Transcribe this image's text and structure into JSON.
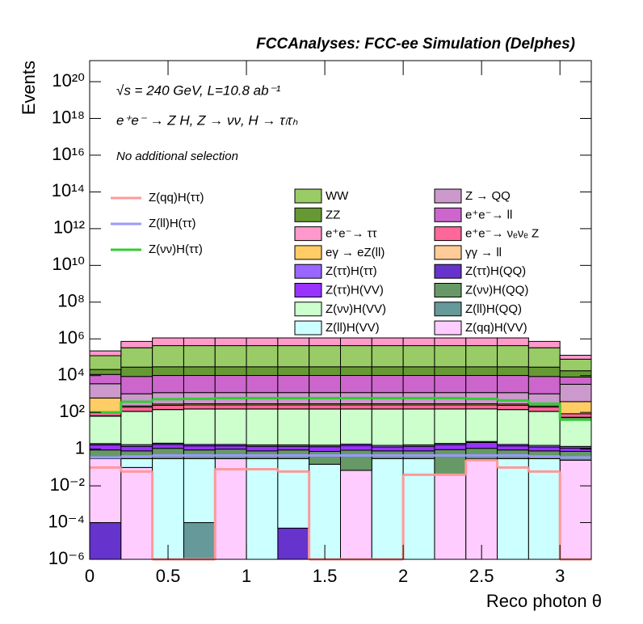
{
  "chart_data": {
    "type": "stacked_histogram",
    "title": "FCCAnalyses: FCC-ee Simulation (Delphes)",
    "annotations": [
      "√s = 240 GeV, L=10.8 ab⁻¹",
      "e⁺e⁻ → Z H, Z → νν, H → τₗτₕ",
      "No additional selection"
    ],
    "xlabel": "Reco photon θ",
    "ylabel": "Events",
    "log_y": true,
    "bins": [
      0,
      0.2,
      0.4,
      0.6,
      0.8,
      1.0,
      1.2,
      1.4,
      1.6,
      1.8,
      2.0,
      2.2,
      2.4,
      2.6,
      2.8,
      3.0,
      3.2
    ],
    "xlim": [
      0,
      3.2
    ],
    "xticks": [
      0,
      0.5,
      1,
      1.5,
      2,
      2.5,
      3
    ],
    "ylim": [
      1e-06,
      1.4e+21
    ],
    "yticks": [
      {
        "value": 1e-06,
        "label": "10⁻⁶"
      },
      {
        "value": 0.0001,
        "label": "10⁻⁴"
      },
      {
        "value": 0.01,
        "label": "10⁻²"
      },
      1,
      {
        "value": 100.0,
        "label": "10²"
      },
      {
        "value": 10000.0,
        "label": "10⁴"
      },
      {
        "value": 1000000.0,
        "label": "10⁶"
      },
      {
        "value": 100000000.0,
        "label": "10⁸"
      },
      {
        "value": 10000000000.0,
        "label": "10¹⁰"
      },
      {
        "value": 1000000000000.0,
        "label": "10¹²"
      },
      {
        "value": 100000000000000.0,
        "label": "10¹⁴"
      },
      {
        "value": 1e+16,
        "label": "10¹⁶"
      },
      {
        "value": 1e+18,
        "label": "10¹⁸"
      },
      {
        "value": 1e+20,
        "label": "10²⁰"
      }
    ],
    "series": [
      {
        "name": "Z(ττ)H(QQ)",
        "color": "#6633cc",
        "values": [
          0.0001,
          0,
          0,
          0,
          0,
          0,
          5e-05,
          0,
          0,
          0,
          0,
          0,
          0,
          0,
          0,
          0
        ]
      },
      {
        "name": "Z(ll)H(QQ)",
        "color": "#669999",
        "values": [
          0,
          0,
          0,
          0.0001,
          0,
          0,
          0,
          0,
          0,
          0,
          0,
          0,
          0,
          0,
          0,
          0
        ]
      },
      {
        "name": "Z(qq)H(VV)",
        "color": "#ffccff",
        "values": [
          0.3,
          0.1,
          0,
          0,
          0.3,
          0,
          0,
          0,
          0.07,
          0,
          0,
          0.04,
          0.3,
          0,
          0,
          0.25
        ]
      },
      {
        "name": "Z(ll)H(VV)",
        "color": "#ccffff",
        "values": [
          0,
          0.2,
          0.3,
          0.3,
          0,
          0.3,
          0.3,
          0.15,
          0,
          0.3,
          0.3,
          0,
          0,
          0.3,
          0.3,
          0
        ]
      },
      {
        "name": "Z(νν)H(QQ)",
        "color": "#669966",
        "values": [
          0.6,
          0.5,
          0.8,
          0.6,
          0.7,
          0.5,
          0.6,
          0.6,
          0.8,
          0.5,
          0.5,
          0.9,
          0.8,
          0.6,
          0.5,
          0.5
        ]
      },
      {
        "name": "Z(ττ)H(VV)",
        "color": "#9933ff",
        "values": [
          0.8,
          0.6,
          0.7,
          0.6,
          0.5,
          0.6,
          0.5,
          0.6,
          0.7,
          0.5,
          0.6,
          0.8,
          1.2,
          0.6,
          0.5,
          0.4
        ]
      },
      {
        "name": "Z(ττ)H(ττ)",
        "color": "#9966ff",
        "values": [
          0.3,
          0.35,
          0.3,
          0.3,
          0.3,
          0.3,
          0.3,
          0.3,
          0.3,
          0.3,
          0.3,
          0.3,
          0.3,
          0.3,
          0.3,
          0.25
        ]
      },
      {
        "name": "Z(νν)H(VV)",
        "color": "#ccffcc",
        "values": [
          60,
          110,
          140,
          150,
          150,
          150,
          150,
          150,
          150,
          150,
          150,
          150,
          150,
          140,
          110,
          50
        ]
      },
      {
        "name": "γγ → ll",
        "color": "#ffcc99",
        "values": [
          3,
          2,
          2,
          2,
          2,
          2,
          2,
          2,
          2,
          2,
          2,
          2,
          2,
          2,
          2,
          3
        ]
      },
      {
        "name": "e⁺e⁻→ νₑνₑ Z",
        "color": "#ff6699",
        "values": [
          40,
          80,
          100,
          100,
          100,
          100,
          100,
          100,
          100,
          100,
          100,
          100,
          100,
          100,
          80,
          30
        ]
      },
      {
        "name": "eγ → eZ(ll)",
        "color": "#ffcc66",
        "values": [
          500,
          30,
          40,
          40,
          40,
          40,
          40,
          40,
          40,
          40,
          40,
          40,
          40,
          40,
          30,
          300
        ]
      },
      {
        "name": "Z → QQ",
        "color": "#cc99cc",
        "values": [
          3000,
          800,
          900,
          900,
          900,
          900,
          900,
          900,
          900,
          900,
          900,
          900,
          900,
          900,
          800,
          3000
        ]
      },
      {
        "name": "e⁺e⁻→ ll",
        "color": "#cc66cc",
        "values": [
          8000,
          8000,
          9000,
          9000,
          9000,
          9000,
          9000,
          9000,
          9000,
          9000,
          9000,
          9000,
          9000,
          9000,
          8000,
          5000
        ]
      },
      {
        "name": "ZZ",
        "color": "#669933",
        "values": [
          10000,
          20000,
          20000,
          20000,
          20000,
          20000,
          20000,
          20000,
          20000,
          20000,
          20000,
          20000,
          20000,
          20000,
          20000,
          10000
        ]
      },
      {
        "name": "WW",
        "color": "#99cc66",
        "values": [
          100000,
          300000,
          400000,
          400000,
          400000,
          400000,
          400000,
          400000,
          400000,
          400000,
          400000,
          400000,
          400000,
          400000,
          300000,
          60000
        ]
      },
      {
        "name": "e⁺e⁻→ ττ",
        "color": "#ff99cc",
        "values": [
          100000,
          400000,
          700000,
          700000,
          700000,
          700000,
          700000,
          700000,
          700000,
          700000,
          700000,
          700000,
          700000,
          700000,
          400000,
          50000
        ]
      }
    ],
    "lines": [
      {
        "name": "Z(qq)H(ττ)",
        "color": "#ff9999",
        "values": [
          0.1,
          0.06,
          0,
          0,
          0.08,
          0.08,
          0.06,
          0,
          0,
          0,
          0.04,
          0.04,
          0.25,
          0.1,
          0.06,
          0
        ]
      },
      {
        "name": "Z(ll)H(ττ)",
        "color": "#9999ff",
        "values": [
          0.35,
          0.4,
          0.45,
          0.45,
          0.45,
          0.45,
          0.45,
          0.45,
          0.45,
          0.45,
          0.45,
          0.45,
          0.45,
          0.45,
          0.4,
          0.35
        ]
      },
      {
        "name": "Z(νν)H(ττ)",
        "color": "#33cc33",
        "values": [
          100,
          380,
          520,
          550,
          600,
          600,
          600,
          600,
          600,
          600,
          600,
          600,
          550,
          450,
          300,
          40
        ]
      }
    ]
  }
}
